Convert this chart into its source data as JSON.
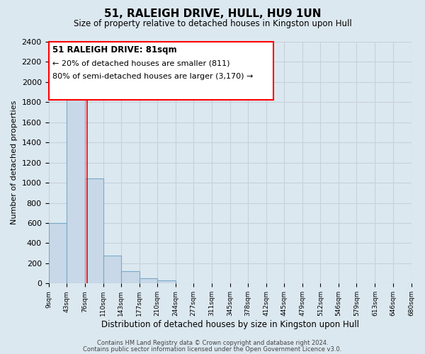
{
  "title": "51, RALEIGH DRIVE, HULL, HU9 1UN",
  "subtitle": "Size of property relative to detached houses in Kingston upon Hull",
  "xlabel": "Distribution of detached houses by size in Kingston upon Hull",
  "ylabel": "Number of detached properties",
  "bar_left_edges": [
    9,
    43,
    76,
    110,
    143,
    177,
    210,
    244,
    277,
    311,
    345,
    378,
    412,
    445,
    479,
    512,
    546,
    579,
    613,
    646
  ],
  "bar_widths": [
    34,
    33,
    34,
    33,
    34,
    33,
    34,
    33,
    33,
    34,
    33,
    34,
    33,
    34,
    33,
    34,
    33,
    34,
    33,
    34
  ],
  "bar_heights": [
    600,
    1880,
    1040,
    280,
    120,
    50,
    30,
    0,
    0,
    0,
    0,
    0,
    0,
    0,
    0,
    0,
    0,
    0,
    0,
    0
  ],
  "bar_color": "#c8d8e8",
  "bar_edge_color": "#7aaac8",
  "xtick_labels": [
    "9sqm",
    "43sqm",
    "76sqm",
    "110sqm",
    "143sqm",
    "177sqm",
    "210sqm",
    "244sqm",
    "277sqm",
    "311sqm",
    "345sqm",
    "378sqm",
    "412sqm",
    "445sqm",
    "479sqm",
    "512sqm",
    "546sqm",
    "579sqm",
    "613sqm",
    "646sqm",
    "680sqm"
  ],
  "xtick_positions": [
    9,
    43,
    76,
    110,
    143,
    177,
    210,
    244,
    277,
    311,
    345,
    378,
    412,
    445,
    479,
    512,
    546,
    579,
    613,
    646,
    680
  ],
  "ylim": [
    0,
    2400
  ],
  "yticks": [
    0,
    200,
    400,
    600,
    800,
    1000,
    1200,
    1400,
    1600,
    1800,
    2000,
    2200,
    2400
  ],
  "grid_color": "#c8d0dc",
  "property_line_x": 81,
  "annotation_text_line1": "51 RALEIGH DRIVE: 81sqm",
  "annotation_text_line2": "← 20% of detached houses are smaller (811)",
  "annotation_text_line3": "80% of semi-detached houses are larger (3,170) →",
  "footer_line1": "Contains HM Land Registry data © Crown copyright and database right 2024.",
  "footer_line2": "Contains public sector information licensed under the Open Government Licence v3.0.",
  "bg_color": "#dce8f0",
  "plot_bg_color": "#dce8f0"
}
